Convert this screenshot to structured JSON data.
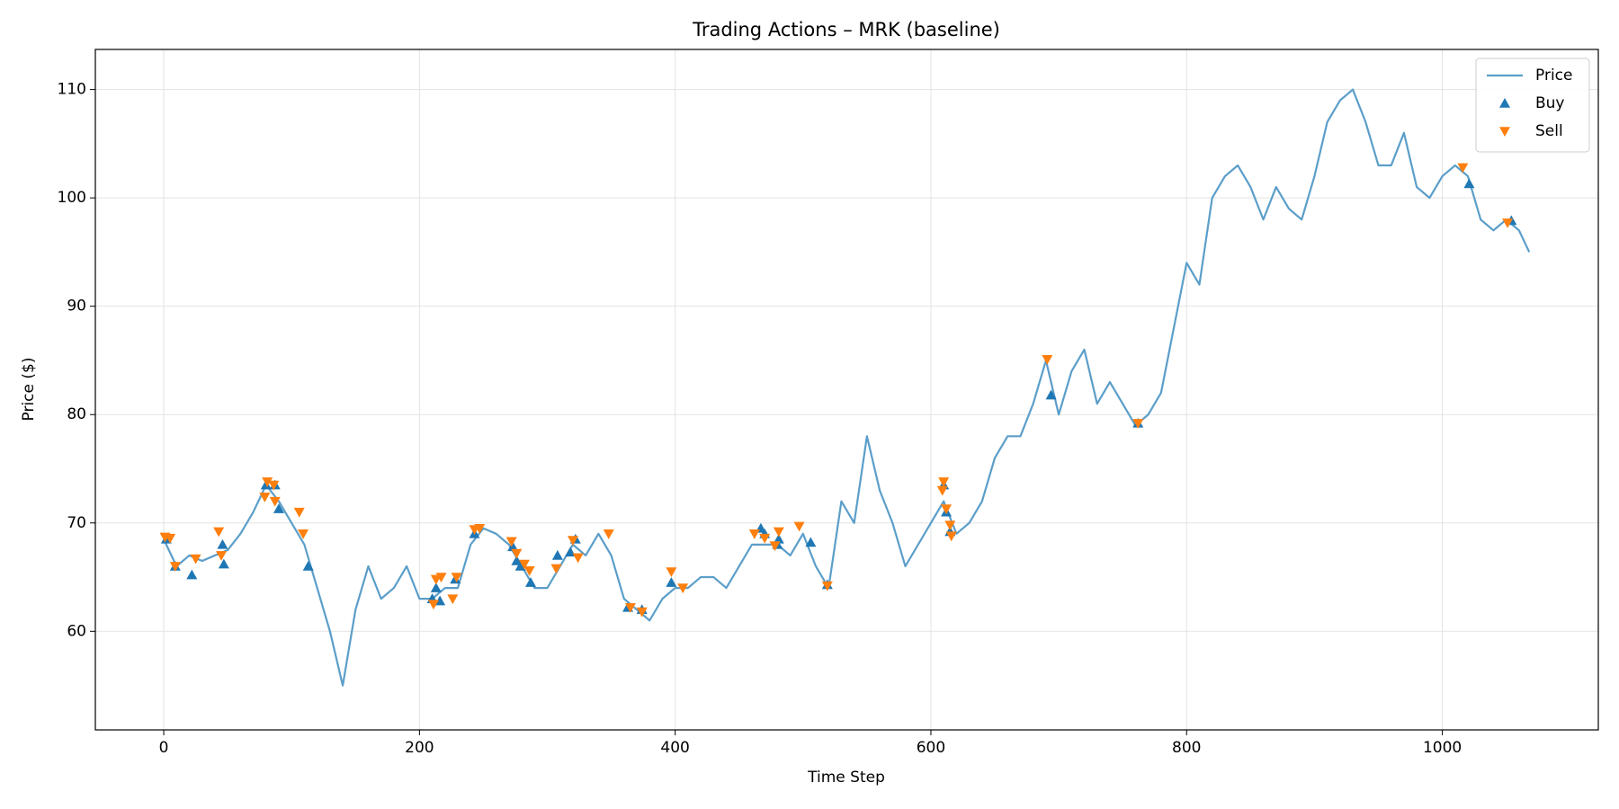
{
  "chart_data": {
    "type": "line",
    "title": "Trading Actions – MRK (baseline)",
    "x_label": "Time Step",
    "y_label": "Price ($)",
    "xlim": [
      -53.5,
      1122
    ],
    "ylim": [
      50.9,
      113.7
    ],
    "xticks": [
      0,
      200,
      400,
      600,
      800,
      1000
    ],
    "yticks": [
      60,
      70,
      80,
      90,
      100,
      110
    ],
    "grid": true,
    "legend": "upper right",
    "series": [
      {
        "name": "Price",
        "type": "line",
        "color": "#5b9ec9",
        "x": [
          0,
          10,
          20,
          30,
          40,
          50,
          60,
          70,
          80,
          90,
          100,
          110,
          120,
          130,
          140,
          150,
          160,
          170,
          180,
          190,
          200,
          210,
          220,
          230,
          240,
          250,
          260,
          270,
          280,
          290,
          300,
          310,
          320,
          330,
          340,
          350,
          360,
          370,
          380,
          390,
          400,
          410,
          420,
          430,
          440,
          450,
          460,
          470,
          480,
          490,
          500,
          510,
          520,
          530,
          540,
          550,
          560,
          570,
          580,
          590,
          600,
          610,
          620,
          630,
          640,
          650,
          660,
          670,
          680,
          690,
          700,
          710,
          720,
          730,
          740,
          750,
          760,
          770,
          780,
          790,
          800,
          810,
          820,
          830,
          840,
          850,
          860,
          870,
          880,
          890,
          900,
          910,
          920,
          930,
          940,
          950,
          960,
          970,
          980,
          990,
          1000,
          1010,
          1020,
          1030,
          1040,
          1050,
          1060,
          1068
        ],
        "values": [
          68.5,
          66,
          67,
          66.5,
          67,
          67.5,
          69,
          71,
          73.5,
          72,
          70,
          68,
          64,
          60,
          55,
          62,
          66,
          63,
          64,
          66,
          63,
          63,
          64,
          64,
          68,
          69.5,
          69,
          68,
          66,
          64,
          64,
          66,
          68,
          67,
          69,
          67,
          63,
          62,
          61,
          63,
          64,
          64,
          65,
          65,
          64,
          66,
          68,
          68,
          68,
          67,
          69,
          66,
          64,
          72,
          70,
          78,
          73,
          70,
          66,
          68,
          70,
          72,
          69,
          70,
          72,
          76,
          78,
          78,
          81,
          85,
          80,
          84,
          86,
          81,
          83,
          81,
          79,
          80,
          82,
          88,
          94,
          92,
          100,
          102,
          103,
          101,
          98,
          101,
          99,
          98,
          102,
          107,
          109,
          110,
          107,
          103,
          103,
          106,
          101,
          100,
          102,
          103,
          102,
          98,
          97,
          98,
          97,
          95
        ]
      },
      {
        "name": "Buy",
        "type": "scatter",
        "marker": "up",
        "color": "#1f77b4",
        "x": [
          2,
          9,
          22,
          46,
          47,
          80,
          87,
          90,
          113,
          210,
          213,
          216,
          228,
          243,
          273,
          276,
          279,
          287,
          308,
          318,
          322,
          363,
          374,
          397,
          467,
          470,
          480,
          481,
          506,
          519,
          610,
          612,
          615,
          694,
          762,
          1021,
          1054
        ],
        "values": [
          68.5,
          66,
          65.2,
          68,
          66.2,
          73.5,
          73.5,
          71.3,
          66,
          63,
          64,
          62.8,
          64.8,
          69,
          67.8,
          66.5,
          66,
          64.5,
          67,
          67.3,
          68.5,
          62.2,
          62,
          64.5,
          69.5,
          69,
          68,
          68.5,
          68.2,
          64.3,
          73.5,
          71,
          69.2,
          81.8,
          79.2,
          101.3,
          97.9
        ]
      },
      {
        "name": "Sell",
        "type": "scatter",
        "marker": "down",
        "color": "#ff7f0e",
        "x": [
          1,
          5,
          9,
          25,
          43,
          45,
          79,
          81,
          86,
          87,
          106,
          109,
          211,
          213,
          217,
          226,
          229,
          243,
          247,
          272,
          276,
          282,
          286,
          307,
          320,
          324,
          348,
          365,
          374,
          397,
          406,
          462,
          470,
          478,
          481,
          497,
          519,
          609,
          610,
          612,
          615,
          616,
          691,
          762,
          1016,
          1051
        ],
        "values": [
          68.7,
          68.6,
          66,
          66.7,
          69.2,
          67,
          72.4,
          73.8,
          73.5,
          72,
          71,
          69,
          62.5,
          64.8,
          65,
          63,
          65,
          69.4,
          69.5,
          68.3,
          67.2,
          66.2,
          65.6,
          65.8,
          68.4,
          66.8,
          69,
          62.2,
          61.8,
          65.5,
          64,
          69,
          68.6,
          67.9,
          69.2,
          69.7,
          64.2,
          73,
          73.8,
          71.3,
          69.8,
          68.8,
          85.1,
          79.2,
          102.8,
          97.7
        ]
      }
    ]
  }
}
